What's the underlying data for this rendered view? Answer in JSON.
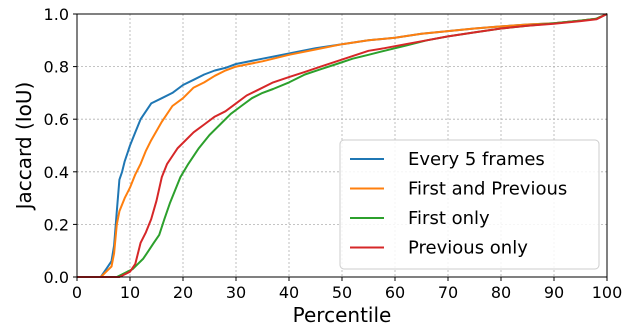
{
  "chart_data": {
    "type": "line",
    "title": "",
    "xlabel": "Percentile",
    "ylabel": "Jaccard (IoU)",
    "xlim": [
      0,
      100
    ],
    "ylim": [
      0.0,
      1.0
    ],
    "xticks": [
      "0",
      "10",
      "20",
      "30",
      "40",
      "50",
      "60",
      "70",
      "80",
      "90",
      "100"
    ],
    "yticks": [
      "0.0",
      "0.2",
      "0.4",
      "0.6",
      "0.8",
      "1.0"
    ],
    "grid": true,
    "legend_position": "bottom-right",
    "series": [
      {
        "name": "Every 5 frames",
        "color": "#1f77b4",
        "x": [
          0,
          4.5,
          5.5,
          6.5,
          7,
          7.5,
          8,
          8.5,
          9,
          10,
          11,
          12,
          14,
          16,
          18,
          20,
          22,
          24,
          26,
          28,
          30,
          35,
          40,
          45,
          50,
          55,
          60,
          65,
          70,
          75,
          80,
          85,
          90,
          95,
          98,
          100
        ],
        "y": [
          0,
          0,
          0.03,
          0.06,
          0.12,
          0.25,
          0.37,
          0.4,
          0.44,
          0.5,
          0.55,
          0.6,
          0.66,
          0.68,
          0.7,
          0.73,
          0.75,
          0.77,
          0.785,
          0.795,
          0.81,
          0.83,
          0.85,
          0.87,
          0.885,
          0.9,
          0.91,
          0.925,
          0.935,
          0.945,
          0.953,
          0.96,
          0.965,
          0.975,
          0.982,
          1.0
        ]
      },
      {
        "name": "First and Previous",
        "color": "#ff7f0e",
        "x": [
          0,
          4.5,
          5.5,
          6.5,
          7,
          7.5,
          8,
          9,
          10,
          11,
          12,
          13,
          14,
          16,
          18,
          20,
          22,
          24,
          26,
          28,
          30,
          35,
          40,
          45,
          50,
          55,
          60,
          65,
          70,
          75,
          80,
          85,
          90,
          95,
          98,
          100
        ],
        "y": [
          0,
          0,
          0.02,
          0.04,
          0.09,
          0.2,
          0.25,
          0.3,
          0.34,
          0.39,
          0.43,
          0.48,
          0.52,
          0.59,
          0.65,
          0.68,
          0.72,
          0.74,
          0.765,
          0.785,
          0.8,
          0.82,
          0.845,
          0.865,
          0.885,
          0.9,
          0.91,
          0.925,
          0.935,
          0.945,
          0.953,
          0.96,
          0.965,
          0.975,
          0.982,
          1.0
        ]
      },
      {
        "name": "First only",
        "color": "#2ca02c",
        "x": [
          0,
          7.5,
          8.5,
          9.5,
          10.5,
          11.5,
          12.5,
          13.5,
          14.5,
          15.5,
          16.5,
          17.5,
          18.5,
          19.5,
          21,
          23,
          25,
          27,
          29,
          31,
          33,
          35,
          37,
          40,
          43,
          46,
          49,
          52,
          55,
          58,
          62,
          66,
          70,
          75,
          80,
          85,
          90,
          95,
          98,
          100
        ],
        "y": [
          0,
          0,
          0.01,
          0.02,
          0.03,
          0.05,
          0.07,
          0.1,
          0.13,
          0.16,
          0.22,
          0.28,
          0.33,
          0.38,
          0.43,
          0.49,
          0.54,
          0.58,
          0.62,
          0.65,
          0.68,
          0.7,
          0.715,
          0.74,
          0.77,
          0.79,
          0.81,
          0.83,
          0.845,
          0.86,
          0.88,
          0.9,
          0.915,
          0.93,
          0.945,
          0.955,
          0.965,
          0.975,
          0.982,
          1.0
        ]
      },
      {
        "name": "Previous only",
        "color": "#d62728",
        "x": [
          0,
          8,
          9,
          10,
          11,
          12,
          13,
          14,
          15,
          16,
          17,
          18,
          19,
          20,
          22,
          24,
          26,
          28,
          30,
          32,
          34,
          37,
          40,
          43,
          46,
          49,
          52,
          55,
          58,
          62,
          66,
          70,
          75,
          80,
          85,
          90,
          95,
          98,
          100
        ],
        "y": [
          0,
          0,
          0.01,
          0.02,
          0.05,
          0.13,
          0.17,
          0.22,
          0.29,
          0.38,
          0.43,
          0.46,
          0.49,
          0.51,
          0.55,
          0.58,
          0.61,
          0.63,
          0.66,
          0.69,
          0.71,
          0.74,
          0.76,
          0.78,
          0.8,
          0.82,
          0.84,
          0.86,
          0.87,
          0.885,
          0.9,
          0.915,
          0.93,
          0.945,
          0.955,
          0.963,
          0.973,
          0.98,
          1.0
        ]
      }
    ]
  }
}
